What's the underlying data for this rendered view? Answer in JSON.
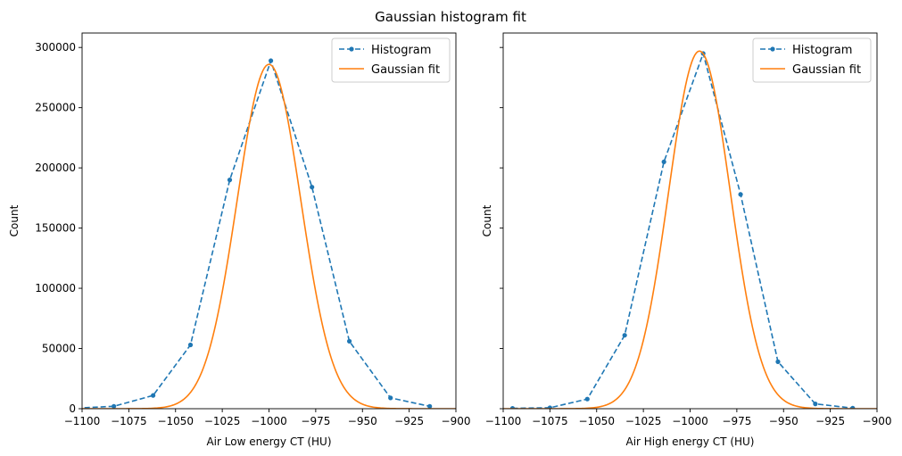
{
  "figure": {
    "title": "Gaussian histogram fit"
  },
  "chart_data": [
    {
      "type": "line",
      "xlabel": "Air Low energy CT (HU)",
      "ylabel": "Count",
      "xlim": [
        -1100,
        -900
      ],
      "ylim": [
        0,
        312000
      ],
      "xticks": [
        -1100,
        -1075,
        -1050,
        -1025,
        -1000,
        -975,
        -950,
        -925,
        -900
      ],
      "xtick_labels": [
        "−1100",
        "−1075",
        "−1050",
        "−1025",
        "−1000",
        "−975",
        "−950",
        "−925",
        "−900"
      ],
      "yticks": [
        0,
        50000,
        100000,
        150000,
        200000,
        250000,
        300000
      ],
      "ytick_labels": [
        "0",
        "50000",
        "100000",
        "150000",
        "200000",
        "250000",
        "300000"
      ],
      "show_y_tick_labels": true,
      "legend_position": "top-right",
      "grid": false,
      "series": [
        {
          "name": "Histogram",
          "kind": "histogram",
          "style": "dashed-markers",
          "color": "#1f77b4",
          "x": [
            -1103,
            -1083,
            -1062,
            -1042,
            -1021,
            -999,
            -977,
            -957,
            -935,
            -914
          ],
          "y": [
            500,
            2000,
            11000,
            53000,
            190000,
            289000,
            184000,
            56000,
            9000,
            2000
          ]
        },
        {
          "name": "Gaussian fit",
          "kind": "gaussian",
          "style": "solid",
          "color": "#ff7f0e",
          "amplitude": 286000,
          "mean": -1000,
          "sigma": 17
        }
      ]
    },
    {
      "type": "line",
      "xlabel": "Air High energy CT (HU)",
      "ylabel": "Count",
      "xlim": [
        -1100,
        -900
      ],
      "ylim": [
        0,
        312000
      ],
      "xticks": [
        -1100,
        -1075,
        -1050,
        -1025,
        -1000,
        -975,
        -950,
        -925,
        -900
      ],
      "xtick_labels": [
        "−1100",
        "−1075",
        "−1050",
        "−1025",
        "−1000",
        "−975",
        "−950",
        "−925",
        "−900"
      ],
      "yticks": [
        0,
        50000,
        100000,
        150000,
        200000,
        250000,
        300000
      ],
      "ytick_labels": [
        "0",
        "50000",
        "100000",
        "150000",
        "200000",
        "250000",
        "300000"
      ],
      "show_y_tick_labels": false,
      "legend_position": "top-right",
      "grid": false,
      "series": [
        {
          "name": "Histogram",
          "kind": "histogram",
          "style": "dashed-markers",
          "color": "#1f77b4",
          "x": [
            -1095,
            -1075,
            -1055,
            -1035,
            -1014,
            -993,
            -973,
            -953,
            -933,
            -913
          ],
          "y": [
            300,
            800,
            8000,
            61000,
            205000,
            295000,
            178000,
            39000,
            4000,
            500
          ]
        },
        {
          "name": "Gaussian fit",
          "kind": "gaussian",
          "style": "solid",
          "color": "#ff7f0e",
          "amplitude": 297000,
          "mean": -995,
          "sigma": 16.5
        }
      ]
    }
  ]
}
